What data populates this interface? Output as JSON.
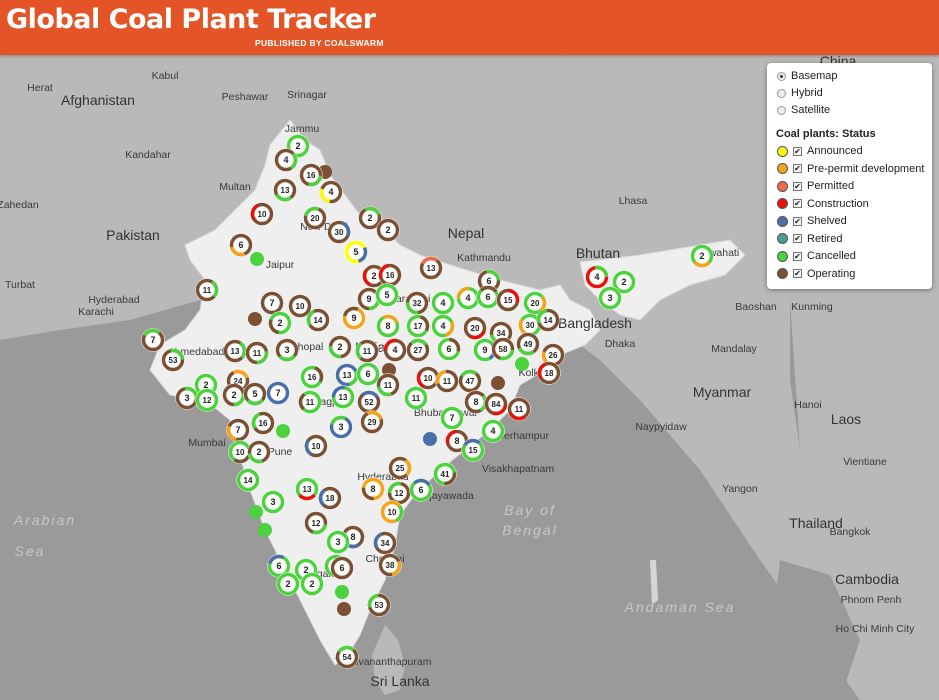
{
  "header": {
    "title": "Global Coal Plant Tracker",
    "byline": "PUBLISHED BY COALSWARM"
  },
  "basemap_options": [
    {
      "label": "Basemap",
      "selected": true
    },
    {
      "label": "Hybrid",
      "selected": false
    },
    {
      "label": "Satellite",
      "selected": false
    }
  ],
  "legend": {
    "title": "Coal plants: Status",
    "items": [
      {
        "label": "Announced",
        "color": "#ffff00",
        "checked": true
      },
      {
        "label": "Pre-permit development",
        "color": "#f5a31a",
        "checked": true
      },
      {
        "label": "Permitted",
        "color": "#ef6b4b",
        "checked": true
      },
      {
        "label": "Construction",
        "color": "#e8120c",
        "checked": true
      },
      {
        "label": "Shelved",
        "color": "#4a6fa8",
        "checked": true
      },
      {
        "label": "Retired",
        "color": "#4a9a9a",
        "checked": true
      },
      {
        "label": "Cancelled",
        "color": "#4cd23e",
        "checked": true
      },
      {
        "label": "Operating",
        "color": "#7b5033",
        "checked": true
      }
    ]
  },
  "place_labels": [
    {
      "text": "China",
      "kind": "country"
    },
    {
      "text": "Afghanistan",
      "kind": "country"
    },
    {
      "text": "Pakistan",
      "kind": "country"
    },
    {
      "text": "Nepal",
      "kind": "country"
    },
    {
      "text": "Bhutan",
      "kind": "country"
    },
    {
      "text": "Bangladesh",
      "kind": "country"
    },
    {
      "text": "India",
      "kind": "country"
    },
    {
      "text": "Myanmar",
      "kind": "country"
    },
    {
      "text": "Laos",
      "kind": "country"
    },
    {
      "text": "Thailand",
      "kind": "country"
    },
    {
      "text": "Cambodia",
      "kind": "country"
    },
    {
      "text": "Sri Lanka",
      "kind": "country"
    },
    {
      "text": "Arabian",
      "kind": "water"
    },
    {
      "text": "Sea",
      "kind": "water"
    },
    {
      "text": "Bay of",
      "kind": "water"
    },
    {
      "text": "Bengal",
      "kind": "water"
    },
    {
      "text": "Andaman Sea",
      "kind": "water"
    },
    {
      "text": "Kabul",
      "kind": "city"
    },
    {
      "text": "Herat",
      "kind": "city"
    },
    {
      "text": "Peshawar",
      "kind": "city"
    },
    {
      "text": "Srinagar",
      "kind": "city"
    },
    {
      "text": "Jammu",
      "kind": "city"
    },
    {
      "text": "Kandahar",
      "kind": "city"
    },
    {
      "text": "Multan",
      "kind": "city"
    },
    {
      "text": "Zahedan",
      "kind": "city"
    },
    {
      "text": "New Delhi",
      "kind": "city"
    },
    {
      "text": "Jaipur",
      "kind": "city"
    },
    {
      "text": "Turbat",
      "kind": "city"
    },
    {
      "text": "Hyderabad",
      "kind": "city"
    },
    {
      "text": "Karachi",
      "kind": "city"
    },
    {
      "text": "Ahmedabad",
      "kind": "city"
    },
    {
      "text": "Bhopal",
      "kind": "city"
    },
    {
      "text": "Kathmandu",
      "kind": "city"
    },
    {
      "text": "Lhasa",
      "kind": "city"
    },
    {
      "text": "Patna",
      "kind": "city"
    },
    {
      "text": "Varanasi",
      "kind": "city"
    },
    {
      "text": "Dhaka",
      "kind": "city"
    },
    {
      "text": "Kolkata",
      "kind": "city"
    },
    {
      "text": "Guwahati",
      "kind": "city"
    },
    {
      "text": "Baoshan",
      "kind": "city"
    },
    {
      "text": "Kunming",
      "kind": "city"
    },
    {
      "text": "Mumbai",
      "kind": "city"
    },
    {
      "text": "Pune",
      "kind": "city"
    },
    {
      "text": "Nagpur",
      "kind": "city"
    },
    {
      "text": "Bhubaneswar",
      "kind": "city"
    },
    {
      "text": "Berhampur",
      "kind": "city"
    },
    {
      "text": "Visakhapatnam",
      "kind": "city"
    },
    {
      "text": "Hyderabad",
      "kind": "city"
    },
    {
      "text": "Vijayawada",
      "kind": "city"
    },
    {
      "text": "Bengaluru",
      "kind": "city"
    },
    {
      "text": "Chennai",
      "kind": "city"
    },
    {
      "text": "Thiruvananthapuram",
      "kind": "city"
    },
    {
      "text": "Mandalay",
      "kind": "city"
    },
    {
      "text": "Naypyidaw",
      "kind": "city"
    },
    {
      "text": "Yangon",
      "kind": "city"
    },
    {
      "text": "Hanoi",
      "kind": "city"
    },
    {
      "text": "Vientiane",
      "kind": "city"
    },
    {
      "text": "Bangkok",
      "kind": "city"
    },
    {
      "text": "Phnom Penh",
      "kind": "city"
    },
    {
      "text": "Ho Chi Minh City",
      "kind": "city"
    }
  ],
  "plant_clusters": [
    {
      "count": "2",
      "dom": "#4cd23e",
      "acc": null
    },
    {
      "count": "4",
      "dom": "#7b5033",
      "acc": "#4cd23e"
    },
    {
      "count": "16",
      "dom": "#7b5033",
      "acc": "#4cd23e"
    },
    {
      "count": "13",
      "dom": "#7b5033",
      "acc": "#4cd23e"
    },
    {
      "count": "4",
      "dom": "#7b5033",
      "acc": "#ffff00"
    },
    {
      "count": "10",
      "dom": "#7b5033",
      "acc": "#e8120c"
    },
    {
      "count": "20",
      "dom": "#7b5033",
      "acc": "#4cd23e"
    },
    {
      "count": "2",
      "dom": "#7b5033",
      "acc": "#4cd23e"
    },
    {
      "count": "30",
      "dom": "#7b5033",
      "acc": "#4a6fa8"
    },
    {
      "count": "5",
      "dom": "#ffff00",
      "acc": "#4a6fa8"
    },
    {
      "count": "2",
      "dom": "#7b5033",
      "acc": null
    },
    {
      "count": "6",
      "dom": "#7b5033",
      "acc": "#f5a31a"
    },
    {
      "count": "2",
      "dom": "#7b5033",
      "acc": "#e8120c"
    },
    {
      "count": "16",
      "dom": "#7b5033",
      "acc": "#e8120c"
    },
    {
      "count": "13",
      "dom": "#7b5033",
      "acc": "#ef6b4b"
    },
    {
      "count": "6",
      "dom": "#7b5033",
      "acc": "#4cd23e"
    },
    {
      "count": "11",
      "dom": "#7b5033",
      "acc": "#4cd23e"
    },
    {
      "count": "9",
      "dom": "#7b5033",
      "acc": "#4cd23e"
    },
    {
      "count": "5",
      "dom": "#4cd23e",
      "acc": null
    },
    {
      "count": "32",
      "dom": "#7b5033",
      "acc": "#4cd23e"
    },
    {
      "count": "4",
      "dom": "#4cd23e",
      "acc": null
    },
    {
      "count": "4",
      "dom": "#4cd23e",
      "acc": "#f5a31a"
    },
    {
      "count": "6",
      "dom": "#4cd23e",
      "acc": "#7b5033"
    },
    {
      "count": "15",
      "dom": "#7b5033",
      "acc": "#e8120c"
    },
    {
      "count": "20",
      "dom": "#4cd23e",
      "acc": "#f5a31a"
    },
    {
      "count": "7",
      "dom": "#7b5033",
      "acc": null
    },
    {
      "count": "10",
      "dom": "#7b5033",
      "acc": null
    },
    {
      "count": "2",
      "dom": "#4cd23e",
      "acc": "#7b5033"
    },
    {
      "count": "14",
      "dom": "#7b5033",
      "acc": "#4cd23e"
    },
    {
      "count": "9",
      "dom": "#f5a31a",
      "acc": "#7b5033"
    },
    {
      "count": "8",
      "dom": "#4cd23e",
      "acc": "#f5a31a"
    },
    {
      "count": "17",
      "dom": "#4cd23e",
      "acc": "#7b5033"
    },
    {
      "count": "4",
      "dom": "#4cd23e",
      "acc": "#f5a31a"
    },
    {
      "count": "20",
      "dom": "#7b5033",
      "acc": "#e8120c"
    },
    {
      "count": "34",
      "dom": "#7b5033",
      "acc": "#4cd23e"
    },
    {
      "count": "30",
      "dom": "#4cd23e",
      "acc": "#f5a31a"
    },
    {
      "count": "14",
      "dom": "#7b5033",
      "acc": "#4cd23e"
    },
    {
      "count": "7",
      "dom": "#7b5033",
      "acc": "#4cd23e"
    },
    {
      "count": "53",
      "dom": "#7b5033",
      "acc": "#4cd23e"
    },
    {
      "count": "13",
      "dom": "#7b5033",
      "acc": "#4cd23e"
    },
    {
      "count": "11",
      "dom": "#7b5033",
      "acc": "#4cd23e"
    },
    {
      "count": "3",
      "dom": "#7b5033",
      "acc": "#4cd23e"
    },
    {
      "count": "2",
      "dom": "#7b5033",
      "acc": "#4cd23e"
    },
    {
      "count": "11",
      "dom": "#7b5033",
      "acc": "#4cd23e"
    },
    {
      "count": "4",
      "dom": "#7b5033",
      "acc": "#e8120c"
    },
    {
      "count": "27",
      "dom": "#7b5033",
      "acc": "#4cd23e"
    },
    {
      "count": "6",
      "dom": "#4cd23e",
      "acc": "#7b5033"
    },
    {
      "count": "9",
      "dom": "#4cd23e",
      "acc": "#4a6fa8"
    },
    {
      "count": "58",
      "dom": "#7b5033",
      "acc": "#4cd23e"
    },
    {
      "count": "49",
      "dom": "#7b5033",
      "acc": "#4cd23e"
    },
    {
      "count": "26",
      "dom": "#7b5033",
      "acc": "#f5a31a"
    },
    {
      "count": "18",
      "dom": "#7b5033",
      "acc": "#e8120c"
    },
    {
      "count": "2",
      "dom": "#4cd23e",
      "acc": null
    },
    {
      "count": "24",
      "dom": "#7b5033",
      "acc": "#f5a31a"
    },
    {
      "count": "16",
      "dom": "#4cd23e",
      "acc": "#7b5033"
    },
    {
      "count": "13",
      "dom": "#4a6fa8",
      "acc": "#4cd23e"
    },
    {
      "count": "6",
      "dom": "#4cd23e",
      "acc": null
    },
    {
      "count": "11",
      "dom": "#7b5033",
      "acc": "#4cd23e"
    },
    {
      "count": "10",
      "dom": "#7b5033",
      "acc": "#e8120c"
    },
    {
      "count": "11",
      "dom": "#7b5033",
      "acc": "#f5a31a"
    },
    {
      "count": "47",
      "dom": "#7b5033",
      "acc": "#4cd23e"
    },
    {
      "count": "3",
      "dom": "#7b5033",
      "acc": "#4cd23e"
    },
    {
      "count": "12",
      "dom": "#4cd23e",
      "acc": null
    },
    {
      "count": "2",
      "dom": "#7b5033",
      "acc": "#4cd23e"
    },
    {
      "count": "5",
      "dom": "#7b5033",
      "acc": "#4cd23e"
    },
    {
      "count": "7",
      "dom": "#4a6fa8",
      "acc": null
    },
    {
      "count": "11",
      "dom": "#4cd23e",
      "acc": "#7b5033"
    },
    {
      "count": "13",
      "dom": "#4cd23e",
      "acc": "#4a6fa8"
    },
    {
      "count": "52",
      "dom": "#7b5033",
      "acc": "#4a6fa8"
    },
    {
      "count": "11",
      "dom": "#4cd23e",
      "acc": null
    },
    {
      "count": "8",
      "dom": "#7b5033",
      "acc": "#4cd23e"
    },
    {
      "count": "84",
      "dom": "#7b5033",
      "acc": "#e8120c"
    },
    {
      "count": "11",
      "dom": "#7b5033",
      "acc": "#e8120c"
    },
    {
      "count": "7",
      "dom": "#7b5033",
      "acc": "#f5a31a"
    },
    {
      "count": "16",
      "dom": "#7b5033",
      "acc": "#4cd23e"
    },
    {
      "count": "3",
      "dom": "#4a6fa8",
      "acc": "#4cd23e"
    },
    {
      "count": "29",
      "dom": "#7b5033",
      "acc": "#f5a31a"
    },
    {
      "count": "7",
      "dom": "#4cd23e",
      "acc": null
    },
    {
      "count": "4",
      "dom": "#4cd23e",
      "acc": null
    },
    {
      "count": "10",
      "dom": "#4cd23e",
      "acc": "#7b5033"
    },
    {
      "count": "2",
      "dom": "#7b5033",
      "acc": "#4cd23e"
    },
    {
      "count": "10",
      "dom": "#7b5033",
      "acc": "#4a6fa8"
    },
    {
      "count": "8",
      "dom": "#7b5033",
      "acc": "#e8120c"
    },
    {
      "count": "15",
      "dom": "#4cd23e",
      "acc": "#4a6fa8"
    },
    {
      "count": "14",
      "dom": "#4cd23e",
      "acc": null
    },
    {
      "count": "25",
      "dom": "#7b5033",
      "acc": "#f5a31a"
    },
    {
      "count": "41",
      "dom": "#4cd23e",
      "acc": "#7b5033"
    },
    {
      "count": "13",
      "dom": "#4cd23e",
      "acc": "#e8120c"
    },
    {
      "count": "8",
      "dom": "#f5a31a",
      "acc": "#7b5033"
    },
    {
      "count": "18",
      "dom": "#7b5033",
      "acc": "#4a6fa8"
    },
    {
      "count": "12",
      "dom": "#7b5033",
      "acc": "#4cd23e"
    },
    {
      "count": "6",
      "dom": "#4cd23e",
      "acc": "#4a6fa8"
    },
    {
      "count": "3",
      "dom": "#4cd23e",
      "acc": null
    },
    {
      "count": "10",
      "dom": "#f5a31a",
      "acc": "#4cd23e"
    },
    {
      "count": "12",
      "dom": "#7b5033",
      "acc": "#4cd23e"
    },
    {
      "count": "8",
      "dom": "#7b5033",
      "acc": "#4a6fa8"
    },
    {
      "count": "3",
      "dom": "#4cd23e",
      "acc": null
    },
    {
      "count": "34",
      "dom": "#7b5033",
      "acc": "#4a6fa8"
    },
    {
      "count": "6",
      "dom": "#4cd23e",
      "acc": "#4a6fa8"
    },
    {
      "count": "2",
      "dom": "#4cd23e",
      "acc": null
    },
    {
      "count": "3",
      "dom": "#4cd23e",
      "acc": null
    },
    {
      "count": "38",
      "dom": "#7b5033",
      "acc": "#f5a31a"
    },
    {
      "count": "2",
      "dom": "#4cd23e",
      "acc": null
    },
    {
      "count": "2",
      "dom": "#4cd23e",
      "acc": null
    },
    {
      "count": "6",
      "dom": "#7b5033",
      "acc": null
    },
    {
      "count": "53",
      "dom": "#7b5033",
      "acc": "#4cd23e"
    },
    {
      "count": "54",
      "dom": "#7b5033",
      "acc": "#4cd23e"
    },
    {
      "count": "4",
      "dom": "#e8120c",
      "acc": "#4cd23e"
    },
    {
      "count": "2",
      "dom": "#4cd23e",
      "acc": null
    },
    {
      "count": "3",
      "dom": "#4cd23e",
      "acc": null
    },
    {
      "count": "2",
      "dom": "#4cd23e",
      "acc": "#f5a31a"
    }
  ],
  "single_plants": [
    {
      "color": "#7b5033"
    },
    {
      "color": "#4cd23e"
    },
    {
      "color": "#7b5033"
    },
    {
      "color": "#7b5033"
    },
    {
      "color": "#4cd23e"
    },
    {
      "color": "#7b5033"
    },
    {
      "color": "#4a6fa8"
    },
    {
      "color": "#4cd23e"
    },
    {
      "color": "#4cd23e"
    },
    {
      "color": "#4cd23e"
    },
    {
      "color": "#7b5033"
    },
    {
      "color": "#4cd23e"
    }
  ]
}
